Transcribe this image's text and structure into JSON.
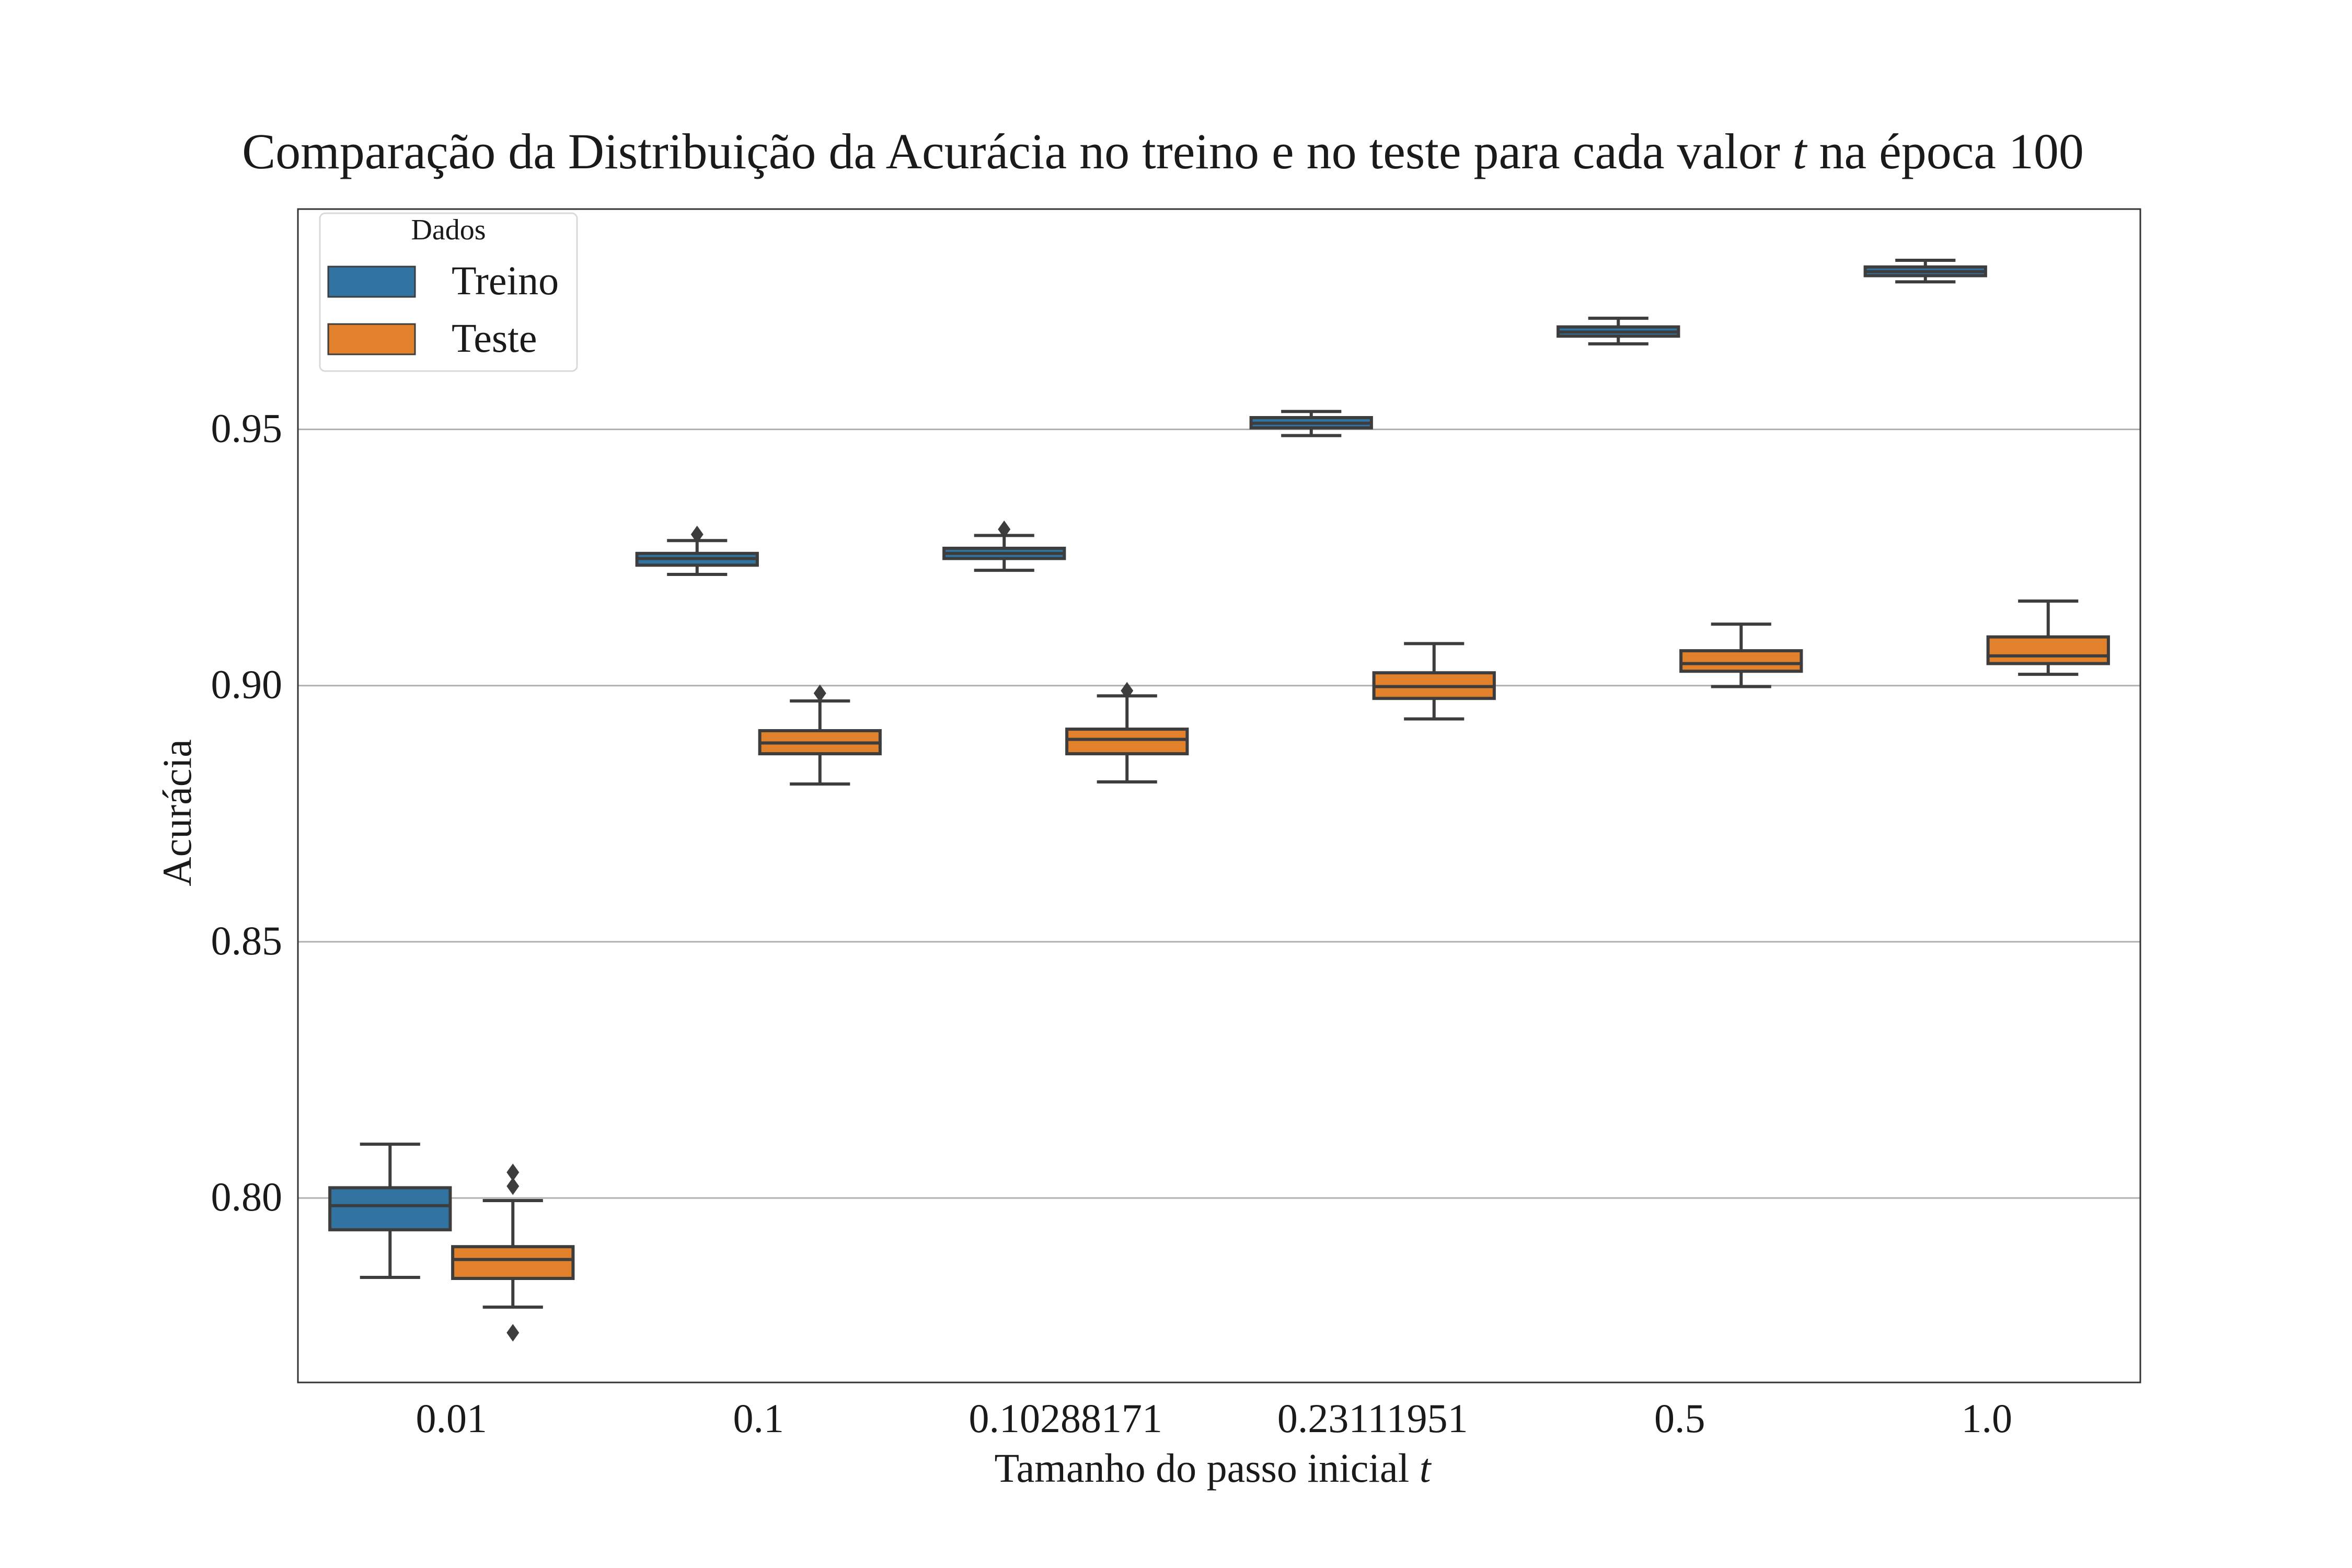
{
  "chart_data": {
    "type": "box",
    "title": "Comparação da Distribuição da Acurácia no treino e no teste para cada valor",
    "title_var": "t",
    "title_suffix": "na época 100",
    "xlabel": "Tamanho do passo inicial",
    "xlabel_var": "t",
    "ylabel": "Acurácia",
    "ylim": [
      0.764,
      0.993
    ],
    "yticks": [
      "0.80",
      "0.85",
      "0.90",
      "0.95"
    ],
    "ytick_values": [
      0.8,
      0.85,
      0.9,
      0.95
    ],
    "grid": "horizontal",
    "categories": [
      "0.01",
      "0.1",
      "0.10288171",
      "0.23111951",
      "0.5",
      "1.0"
    ],
    "legend": {
      "title": "Dados",
      "position": "top-left"
    },
    "series": [
      {
        "name": "Treino",
        "color": "#3274a1",
        "boxes": [
          {
            "whislo": 0.7845,
            "q1": 0.7938,
            "med": 0.7985,
            "q3": 0.802,
            "whishi": 0.8105,
            "fliers": []
          },
          {
            "whislo": 0.9217,
            "q1": 0.9235,
            "med": 0.9248,
            "q3": 0.9258,
            "whishi": 0.9283,
            "fliers": [
              0.9295
            ]
          },
          {
            "whislo": 0.9225,
            "q1": 0.9248,
            "med": 0.9258,
            "q3": 0.9268,
            "whishi": 0.9293,
            "fliers": [
              0.9305
            ]
          },
          {
            "whislo": 0.9488,
            "q1": 0.9503,
            "med": 0.9512,
            "q3": 0.9523,
            "whishi": 0.9535,
            "fliers": []
          },
          {
            "whislo": 0.9667,
            "q1": 0.9682,
            "med": 0.969,
            "q3": 0.97,
            "whishi": 0.9717,
            "fliers": []
          },
          {
            "whislo": 0.9788,
            "q1": 0.98,
            "med": 0.9808,
            "q3": 0.9817,
            "whishi": 0.983,
            "fliers": []
          }
        ]
      },
      {
        "name": "Teste",
        "color": "#e1812c",
        "boxes": [
          {
            "whislo": 0.7787,
            "q1": 0.7843,
            "med": 0.788,
            "q3": 0.7905,
            "whishi": 0.7995,
            "fliers": [
              0.8023,
              0.805,
              0.7737
            ]
          },
          {
            "whislo": 0.8808,
            "q1": 0.8867,
            "med": 0.8888,
            "q3": 0.8912,
            "whishi": 0.897,
            "fliers": [
              0.8985
            ]
          },
          {
            "whislo": 0.8812,
            "q1": 0.8867,
            "med": 0.8895,
            "q3": 0.8915,
            "whishi": 0.898,
            "fliers": [
              0.899
            ]
          },
          {
            "whislo": 0.8935,
            "q1": 0.8975,
            "med": 0.8998,
            "q3": 0.9025,
            "whishi": 0.9082,
            "fliers": []
          },
          {
            "whislo": 0.8998,
            "q1": 0.9028,
            "med": 0.9043,
            "q3": 0.9068,
            "whishi": 0.912,
            "fliers": []
          },
          {
            "whislo": 0.9022,
            "q1": 0.9043,
            "med": 0.9058,
            "q3": 0.9095,
            "whishi": 0.9165,
            "fliers": []
          }
        ]
      }
    ]
  }
}
